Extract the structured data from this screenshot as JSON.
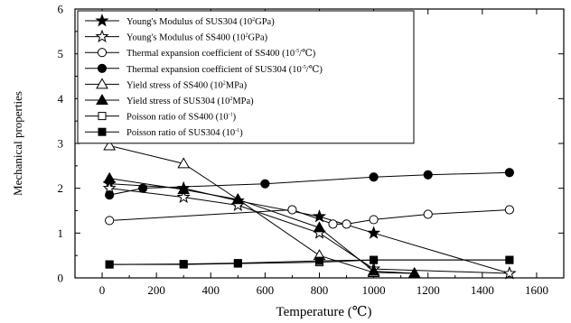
{
  "chart_data": {
    "type": "line",
    "title": "",
    "xlabel": "Temperature (℃)",
    "ylabel": "Mechanical properties",
    "xlim": [
      -100,
      1700
    ],
    "ylim": [
      0,
      6
    ],
    "xticks": [
      0,
      200,
      400,
      600,
      800,
      1000,
      1200,
      1400,
      1600
    ],
    "yticks": [
      0,
      1,
      2,
      3,
      4,
      5,
      6
    ],
    "grid": false,
    "legend_position": "top-left",
    "series": [
      {
        "name": "Young's Modulus of SUS304 (10",
        "sup": "2",
        "unit": "GPa)",
        "marker": "star-filled",
        "x": [
          27,
          300,
          500,
          800,
          1000,
          1500
        ],
        "y": [
          2.1,
          2.0,
          1.72,
          1.37,
          1.0,
          0.1
        ]
      },
      {
        "name": "Young's Modulus of SS400 (10",
        "sup": "2",
        "unit": "GPa)",
        "marker": "star-open",
        "x": [
          27,
          300,
          500,
          800,
          1000,
          1500
        ],
        "y": [
          2.0,
          1.8,
          1.62,
          1.0,
          0.2,
          0.1
        ]
      },
      {
        "name": "Thermal expansion coefficient of SS400 (10",
        "sup": "-5",
        "unit": "/℃)",
        "marker": "circle-open",
        "x": [
          27,
          700,
          850,
          900,
          1000,
          1200,
          1500
        ],
        "y": [
          1.28,
          1.52,
          1.2,
          1.2,
          1.3,
          1.42,
          1.52
        ]
      },
      {
        "name": "Thermal expansion coefficient of SUS304 (10",
        "sup": "-5",
        "unit": "/℃)",
        "marker": "circle-filled",
        "x": [
          27,
          150,
          600,
          1000,
          1200,
          1500
        ],
        "y": [
          1.85,
          2.0,
          2.1,
          2.25,
          2.3,
          2.35
        ]
      },
      {
        "name": "Yield stress of SS400 (10",
        "sup": "2",
        "unit": "MPa)",
        "marker": "triangle-open",
        "x": [
          27,
          300,
          500,
          800,
          1000,
          1150
        ],
        "y": [
          2.95,
          2.55,
          1.75,
          0.5,
          0.12,
          0.1
        ]
      },
      {
        "name": "Yield stress of SUS304 (10",
        "sup": "2",
        "unit": "MPa)",
        "marker": "triangle-filled",
        "x": [
          27,
          300,
          500,
          800,
          1000,
          1150
        ],
        "y": [
          2.22,
          1.97,
          1.75,
          1.12,
          0.15,
          0.1
        ]
      },
      {
        "name": "Poisson ratio of SS400 (10",
        "sup": "-1",
        "unit": ")",
        "marker": "square-open",
        "x": [
          27,
          300,
          500,
          800,
          1000,
          1500
        ],
        "y": [
          0.3,
          0.3,
          0.32,
          0.35,
          0.4,
          0.4
        ]
      },
      {
        "name": "Poisson ratio of SUS304 (10",
        "sup": "-1",
        "unit": ")",
        "marker": "square-filled",
        "x": [
          27,
          300,
          500,
          800,
          1000,
          1500
        ],
        "y": [
          0.3,
          0.31,
          0.33,
          0.38,
          0.4,
          0.4
        ]
      }
    ]
  }
}
